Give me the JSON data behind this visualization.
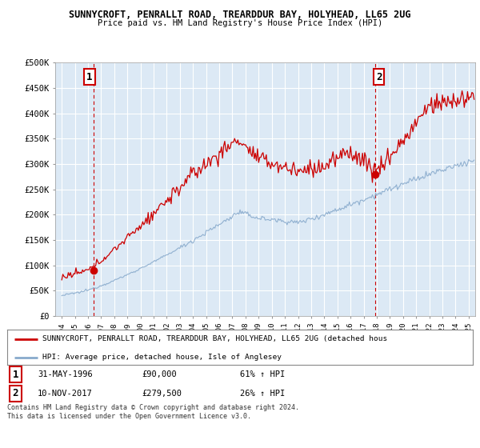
{
  "title1": "SUNNYCROFT, PENRALLT ROAD, TREARDDUR BAY, HOLYHEAD, LL65 2UG",
  "title2": "Price paid vs. HM Land Registry's House Price Index (HPI)",
  "ylim": [
    0,
    500000
  ],
  "yticks": [
    0,
    50000,
    100000,
    150000,
    200000,
    250000,
    300000,
    350000,
    400000,
    450000,
    500000
  ],
  "ytick_labels": [
    "£0",
    "£50K",
    "£100K",
    "£150K",
    "£200K",
    "£250K",
    "£300K",
    "£350K",
    "£400K",
    "£450K",
    "£500K"
  ],
  "xlim_start": 1993.5,
  "xlim_end": 2025.5,
  "xtick_labels": [
    "1994",
    "1995",
    "1996",
    "1997",
    "1998",
    "1999",
    "2000",
    "2001",
    "2002",
    "2003",
    "2004",
    "2005",
    "2006",
    "2007",
    "2008",
    "2009",
    "2010",
    "2011",
    "2012",
    "2013",
    "2014",
    "2015",
    "2016",
    "2017",
    "2018",
    "2019",
    "2020",
    "2021",
    "2022",
    "2023",
    "2024",
    "2025"
  ],
  "property_color": "#cc0000",
  "hpi_color": "#88aacc",
  "sale1_x": 1996.42,
  "sale1_y": 90000,
  "sale2_x": 2017.86,
  "sale2_y": 279500,
  "vline_color": "#cc0000",
  "legend_property": "SUNNYCROFT, PENRALLT ROAD, TREARDDUR BAY, HOLYHEAD, LL65 2UG (detached hous",
  "legend_hpi": "HPI: Average price, detached house, Isle of Anglesey",
  "ann1_date": "31-MAY-1996",
  "ann1_price": "£90,000",
  "ann1_hpi": "61% ↑ HPI",
  "ann2_date": "10-NOV-2017",
  "ann2_price": "£279,500",
  "ann2_hpi": "26% ↑ HPI",
  "footnote": "Contains HM Land Registry data © Crown copyright and database right 2024.\nThis data is licensed under the Open Government Licence v3.0.",
  "bg_color": "#ffffff",
  "plot_bg_color": "#dce9f5",
  "grid_color": "#ffffff"
}
